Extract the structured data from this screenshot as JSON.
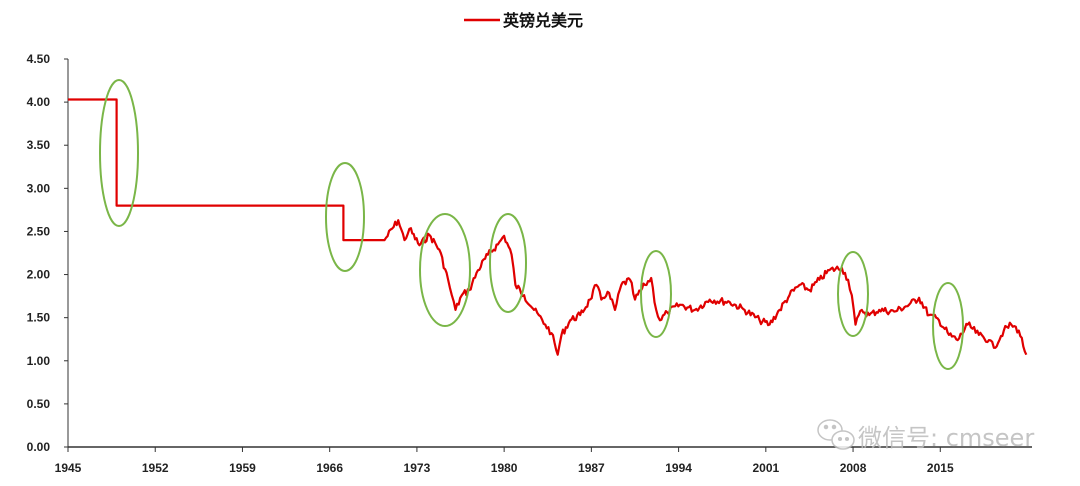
{
  "chart_data": {
    "type": "line",
    "title": "",
    "xlabel": "",
    "ylabel": "",
    "xlim": [
      1945,
      2022.2
    ],
    "ylim": [
      0,
      4.5
    ],
    "grid": false,
    "legend_position": "top-center",
    "x_ticks": [
      "1945",
      "1952",
      "1959",
      "1966",
      "1973",
      "1980",
      "1987",
      "1994",
      "2001",
      "2008",
      "2015"
    ],
    "y_ticks": [
      "0.00",
      "0.50",
      "1.00",
      "1.50",
      "2.00",
      "2.50",
      "3.00",
      "3.50",
      "4.00",
      "4.50"
    ],
    "series": [
      {
        "name": "英镑兑美元",
        "color": "#e00000",
        "points": [
          [
            1945,
            4.03
          ],
          [
            1948.9,
            4.03
          ],
          [
            1948.9,
            2.8
          ],
          [
            1967.1,
            2.8
          ],
          [
            1967.1,
            2.4
          ],
          [
            1970.4,
            2.4
          ],
          [
            1971.5,
            2.63
          ],
          [
            1972.0,
            2.4
          ],
          [
            1972.4,
            2.53
          ],
          [
            1973.2,
            2.34
          ],
          [
            1974.0,
            2.46
          ],
          [
            1974.8,
            2.29
          ],
          [
            1975.5,
            1.94
          ],
          [
            1975.8,
            1.76
          ],
          [
            1976.1,
            1.59
          ],
          [
            1976.6,
            1.76
          ],
          [
            1977.2,
            1.82
          ],
          [
            1977.9,
            2.05
          ],
          [
            1978.7,
            2.23
          ],
          [
            1979.5,
            2.35
          ],
          [
            1980.0,
            2.45
          ],
          [
            1980.6,
            2.23
          ],
          [
            1980.9,
            1.88
          ],
          [
            1981.6,
            1.76
          ],
          [
            1982.4,
            1.59
          ],
          [
            1983.3,
            1.42
          ],
          [
            1983.8,
            1.32
          ],
          [
            1984.3,
            1.07
          ],
          [
            1984.6,
            1.3
          ],
          [
            1985.3,
            1.47
          ],
          [
            1986.1,
            1.53
          ],
          [
            1986.9,
            1.71
          ],
          [
            1987.4,
            1.88
          ],
          [
            1987.8,
            1.71
          ],
          [
            1988.3,
            1.8
          ],
          [
            1988.9,
            1.59
          ],
          [
            1989.4,
            1.88
          ],
          [
            1990.1,
            1.94
          ],
          [
            1990.5,
            1.71
          ],
          [
            1991.3,
            1.88
          ],
          [
            1991.8,
            1.96
          ],
          [
            1992.2,
            1.59
          ],
          [
            1992.5,
            1.47
          ],
          [
            1993.1,
            1.56
          ],
          [
            1994.1,
            1.65
          ],
          [
            1995.3,
            1.59
          ],
          [
            1996.5,
            1.71
          ],
          [
            1998.1,
            1.68
          ],
          [
            1999.3,
            1.59
          ],
          [
            2000.5,
            1.47
          ],
          [
            2001.3,
            1.42
          ],
          [
            2002.1,
            1.59
          ],
          [
            2002.9,
            1.76
          ],
          [
            2003.7,
            1.88
          ],
          [
            2004.5,
            1.82
          ],
          [
            2005.3,
            1.94
          ],
          [
            2006.1,
            2.05
          ],
          [
            2007.1,
            2.08
          ],
          [
            2007.6,
            1.94
          ],
          [
            2007.9,
            1.76
          ],
          [
            2008.2,
            1.42
          ],
          [
            2008.7,
            1.59
          ],
          [
            2009.3,
            1.53
          ],
          [
            2010.1,
            1.59
          ],
          [
            2011.3,
            1.57
          ],
          [
            2012.5,
            1.65
          ],
          [
            2013.3,
            1.73
          ],
          [
            2014.1,
            1.53
          ],
          [
            2014.9,
            1.47
          ],
          [
            2015.7,
            1.3
          ],
          [
            2016.4,
            1.24
          ],
          [
            2017.2,
            1.42
          ],
          [
            2018.1,
            1.3
          ],
          [
            2018.9,
            1.24
          ],
          [
            2019.3,
            1.15
          ],
          [
            2020.1,
            1.35
          ],
          [
            2020.7,
            1.42
          ],
          [
            2021.3,
            1.35
          ],
          [
            2021.9,
            1.07
          ]
        ]
      }
    ],
    "annotations": {
      "highlight_color": "#7ab648",
      "count": 7
    }
  },
  "watermark": {
    "text": "微信号: cmseer",
    "icon": "wechat-icon"
  }
}
